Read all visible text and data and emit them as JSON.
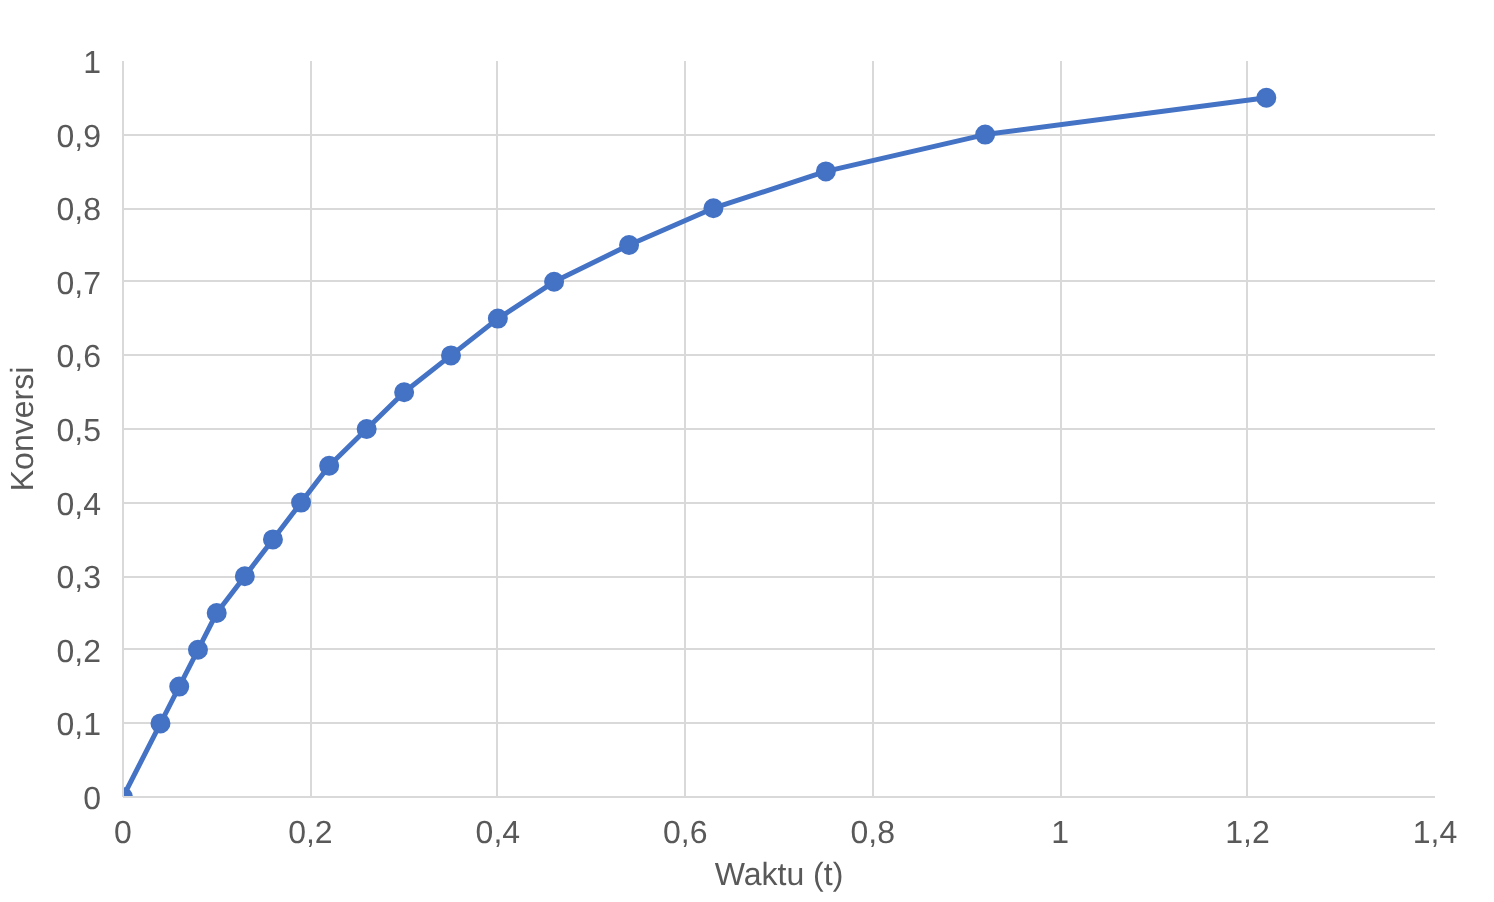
{
  "chart_data": {
    "type": "line",
    "xlabel": "Waktu (t)",
    "ylabel": "Konversi",
    "x": [
      0,
      0.04,
      0.06,
      0.08,
      0.1,
      0.13,
      0.16,
      0.19,
      0.22,
      0.26,
      0.3,
      0.35,
      0.4,
      0.46,
      0.54,
      0.63,
      0.75,
      0.92,
      1.22
    ],
    "series": [
      {
        "color": "#4472c4",
        "values": [
          0,
          0.1,
          0.15,
          0.2,
          0.25,
          0.3,
          0.35,
          0.4,
          0.45,
          0.5,
          0.55,
          0.6,
          0.65,
          0.7,
          0.75,
          0.8,
          0.85,
          0.9,
          0.95
        ]
      }
    ],
    "xlim": [
      0,
      1.4
    ],
    "ylim": [
      0,
      1
    ],
    "xticks": [
      0,
      {
        "value": 0.2,
        "label": "0,2"
      },
      {
        "value": 0.4,
        "label": "0,4"
      },
      {
        "value": 0.6,
        "label": "0,6"
      },
      {
        "value": 0.8,
        "label": "0,8"
      },
      1,
      {
        "value": 1.2,
        "label": "1,2"
      },
      {
        "value": 1.4,
        "label": "1,4"
      }
    ],
    "yticks": [
      0,
      {
        "value": 0.1,
        "label": "0,1"
      },
      {
        "value": 0.2,
        "label": "0,2"
      },
      {
        "value": 0.3,
        "label": "0,3"
      },
      {
        "value": 0.4,
        "label": "0,4"
      },
      {
        "value": 0.5,
        "label": "0,5"
      },
      {
        "value": 0.6,
        "label": "0,6"
      },
      {
        "value": 0.7,
        "label": "0,7"
      },
      {
        "value": 0.8,
        "label": "0,8"
      },
      {
        "value": 0.9,
        "label": "0,9"
      },
      1
    ],
    "grid": true,
    "marker": "circle",
    "line_style": "solid"
  }
}
